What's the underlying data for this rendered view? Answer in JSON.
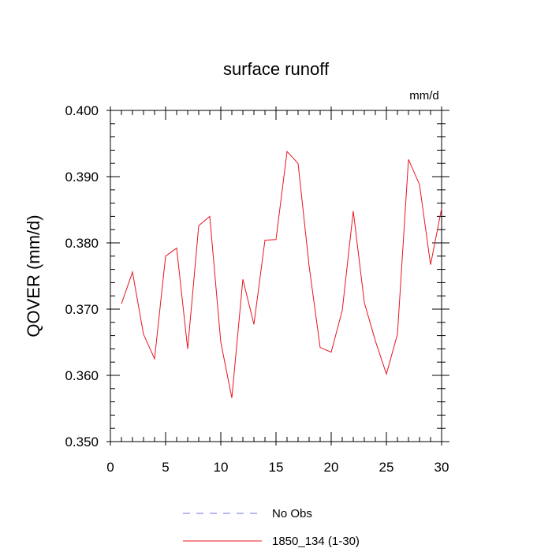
{
  "chart_data": {
    "type": "line",
    "title": "surface runoff",
    "units_label": "mm/d",
    "ylabel": "QOVER  (mm/d)",
    "xlabel": "",
    "xlim": [
      0,
      30
    ],
    "ylim": [
      0.35,
      0.4
    ],
    "x_ticks": [
      "0",
      "5",
      "10",
      "15",
      "20",
      "25",
      "30"
    ],
    "y_ticks": [
      "0.350",
      "0.360",
      "0.370",
      "0.380",
      "0.390",
      "0.400"
    ],
    "grid": false,
    "legend_position": "bottom-center",
    "series": [
      {
        "name": "1850_134 (1-30)",
        "color": "#e8141e",
        "style": "solid",
        "x": [
          1,
          2,
          3,
          4,
          5,
          6,
          7,
          8,
          9,
          10,
          11,
          12,
          13,
          14,
          15,
          16,
          17,
          18,
          19,
          20,
          21,
          22,
          23,
          24,
          25,
          26,
          27,
          28,
          29,
          30
        ],
        "y": [
          0.3708,
          0.3756,
          0.3662,
          0.3625,
          0.378,
          0.3792,
          0.364,
          0.3826,
          0.384,
          0.365,
          0.3566,
          0.3745,
          0.3677,
          0.3804,
          0.3805,
          0.3938,
          0.392,
          0.3765,
          0.3642,
          0.3635,
          0.3698,
          0.3848,
          0.371,
          0.3652,
          0.3602,
          0.3662,
          0.3926,
          0.3888,
          0.3767,
          0.3852
        ]
      },
      {
        "name": "No Obs",
        "color": "#6f6fe8",
        "style": "dashed",
        "x": [],
        "y": []
      }
    ]
  }
}
